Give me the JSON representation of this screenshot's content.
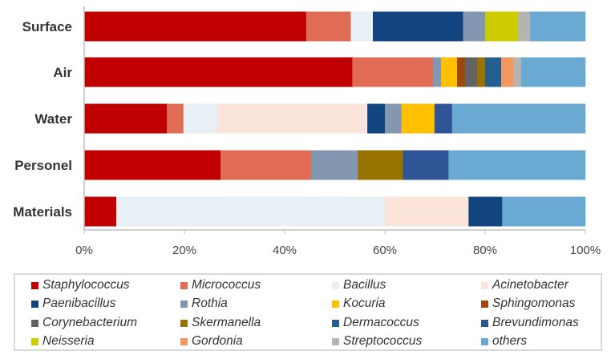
{
  "chart_data": {
    "type": "bar",
    "orientation": "horizontal",
    "stacked": "percent",
    "title": "",
    "xlabel": "",
    "ylabel": "",
    "xlim": [
      0,
      100
    ],
    "x_ticks": [
      "0%",
      "20%",
      "40%",
      "60%",
      "80%",
      "100%"
    ],
    "categories": [
      "Surface",
      "Air",
      "Water",
      "Personel",
      "Materials"
    ],
    "legend_position": "bottom",
    "series": [
      {
        "name": "Staphylococcus",
        "color": "#c00000",
        "values": [
          44.3,
          53.5,
          16.5,
          27.2,
          6.4
        ]
      },
      {
        "name": "Micrococcus",
        "color": "#e06c55",
        "values": [
          8.9,
          16.1,
          3.3,
          18.1,
          0
        ]
      },
      {
        "name": "Bacillus",
        "color": "#e8eff5",
        "values": [
          4.4,
          0,
          6.8,
          0,
          53.6
        ]
      },
      {
        "name": "Acinetobacter",
        "color": "#fbe4d9",
        "values": [
          0,
          0,
          29.9,
          0,
          16.7
        ]
      },
      {
        "name": "Paenibacillus",
        "color": "#124580",
        "values": [
          18.0,
          0,
          3.5,
          0,
          6.7
        ]
      },
      {
        "name": "Rothia",
        "color": "#8497b0",
        "values": [
          4.4,
          1.6,
          3.3,
          9.3,
          0
        ]
      },
      {
        "name": "Kocuria",
        "color": "#ffc000",
        "values": [
          0,
          3.2,
          6.6,
          0,
          0
        ]
      },
      {
        "name": "Sphingomonas",
        "color": "#9e480e",
        "values": [
          0,
          1.6,
          0,
          0,
          0
        ]
      },
      {
        "name": "Corynebacterium",
        "color": "#636363",
        "values": [
          0,
          2.4,
          0,
          0,
          0
        ]
      },
      {
        "name": "Skermanella",
        "color": "#997300",
        "values": [
          0,
          1.6,
          0,
          9.0,
          0
        ]
      },
      {
        "name": "Dermacoccus",
        "color": "#255e91",
        "values": [
          0,
          3.2,
          0,
          0,
          0
        ]
      },
      {
        "name": "Brevundimonas",
        "color": "#2f5597",
        "values": [
          0,
          0,
          3.5,
          9.1,
          0
        ]
      },
      {
        "name": "Neisseria",
        "color": "#cccc00",
        "values": [
          6.6,
          0,
          0,
          0,
          0
        ]
      },
      {
        "name": "Gordonia",
        "color": "#f4975e",
        "values": [
          0,
          2.5,
          0,
          0,
          0
        ]
      },
      {
        "name": "Streptococcus",
        "color": "#b4b4b4",
        "values": [
          2.4,
          1.5,
          0,
          0,
          0
        ]
      },
      {
        "name": "others",
        "color": "#6aaad2",
        "values": [
          11.0,
          12.8,
          26.6,
          27.3,
          16.6
        ]
      }
    ]
  }
}
